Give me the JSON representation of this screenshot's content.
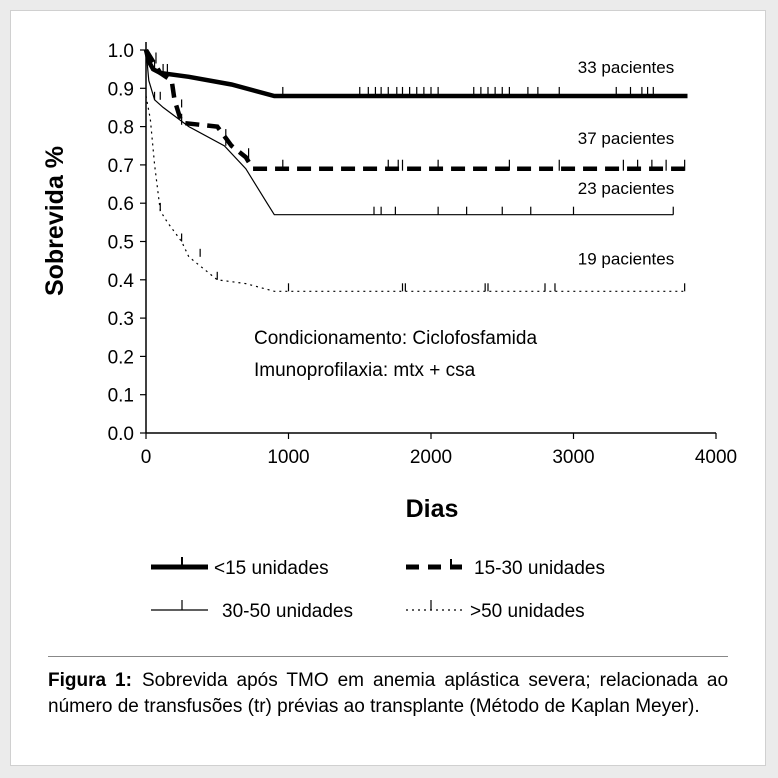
{
  "chart_data": {
    "type": "line",
    "xlabel": "Dias",
    "ylabel": "Sobrevida %",
    "xlim": [
      0,
      4000
    ],
    "ylim": [
      0,
      1.0
    ],
    "x_ticks": [
      0,
      1000,
      2000,
      3000,
      4000
    ],
    "y_ticks": [
      "0.0",
      "0.1",
      "0.2",
      "0.3",
      "0.4",
      "0.5",
      "0.6",
      "0.7",
      "0.8",
      "0.9",
      "1.0"
    ],
    "grid": false,
    "legend_position": "bottom",
    "series": [
      {
        "name": "<15 unidades",
        "style": "thick-solid",
        "points": [
          [
            0,
            1.0
          ],
          [
            20,
            0.97
          ],
          [
            50,
            0.95
          ],
          [
            100,
            0.94
          ],
          [
            300,
            0.93
          ],
          [
            600,
            0.91
          ],
          [
            900,
            0.88
          ],
          [
            3800,
            0.88
          ]
        ],
        "censor_x": [
          60,
          120,
          960,
          1500,
          1560,
          1610,
          1650,
          1700,
          1760,
          1800,
          1850,
          1900,
          1950,
          2000,
          2050,
          2300,
          2350,
          2400,
          2450,
          2500,
          2550,
          2680,
          2750,
          2900,
          3300,
          3400,
          3480,
          3520,
          3560
        ],
        "n_label": "33 pacientes"
      },
      {
        "name": "15-30 unidades",
        "style": "thick-dashed",
        "points": [
          [
            0,
            1.0
          ],
          [
            50,
            0.97
          ],
          [
            100,
            0.94
          ],
          [
            180,
            0.92
          ],
          [
            200,
            0.87
          ],
          [
            250,
            0.81
          ],
          [
            500,
            0.8
          ],
          [
            560,
            0.77
          ],
          [
            600,
            0.75
          ],
          [
            700,
            0.72
          ],
          [
            750,
            0.69
          ],
          [
            3780,
            0.69
          ]
        ],
        "censor_x": [
          70,
          150,
          250,
          560,
          720,
          960,
          1700,
          1770,
          1800,
          2050,
          2550,
          2900,
          3350,
          3450,
          3550,
          3650,
          3780
        ],
        "n_label": "37 pacientes"
      },
      {
        "name": "30-50 unidades",
        "style": "thin-solid",
        "points": [
          [
            0,
            1.0
          ],
          [
            20,
            0.92
          ],
          [
            60,
            0.87
          ],
          [
            120,
            0.85
          ],
          [
            300,
            0.8
          ],
          [
            550,
            0.75
          ],
          [
            700,
            0.69
          ],
          [
            850,
            0.6
          ],
          [
            900,
            0.57
          ],
          [
            3700,
            0.57
          ]
        ],
        "censor_x": [
          60,
          100,
          250,
          560,
          1600,
          1650,
          1750,
          2050,
          2250,
          2500,
          2700,
          3000,
          3700
        ],
        "n_label": "23 pacientes"
      },
      {
        "name": ">50 unidades",
        "style": "thin-dotted",
        "points": [
          [
            0,
            0.88
          ],
          [
            30,
            0.82
          ],
          [
            60,
            0.7
          ],
          [
            100,
            0.58
          ],
          [
            150,
            0.55
          ],
          [
            250,
            0.5
          ],
          [
            300,
            0.46
          ],
          [
            400,
            0.43
          ],
          [
            500,
            0.4
          ],
          [
            700,
            0.39
          ],
          [
            900,
            0.37
          ],
          [
            3780,
            0.37
          ]
        ],
        "censor_x": [
          100,
          250,
          380,
          500,
          1000,
          1800,
          1820,
          2380,
          2400,
          2800,
          2870,
          3780
        ],
        "n_label": "19 pacientes"
      }
    ]
  },
  "annotations": {
    "conditioning": "Condicionamento: Ciclofosfamida",
    "prophylaxis": "Imunoprofilaxia: mtx + csa"
  },
  "legend": [
    {
      "label": "<15 unidades"
    },
    {
      "label": "15-30 unidades"
    },
    {
      "label": "30-50 unidades"
    },
    {
      "label": ">50 unidades"
    }
  ],
  "caption": {
    "label": "Figura 1:",
    "text": "Sobrevida após TMO em anemia aplástica severa; relacionada ao número de transfusões (tr) prévias ao transplante (Método de Kaplan Meyer)."
  }
}
